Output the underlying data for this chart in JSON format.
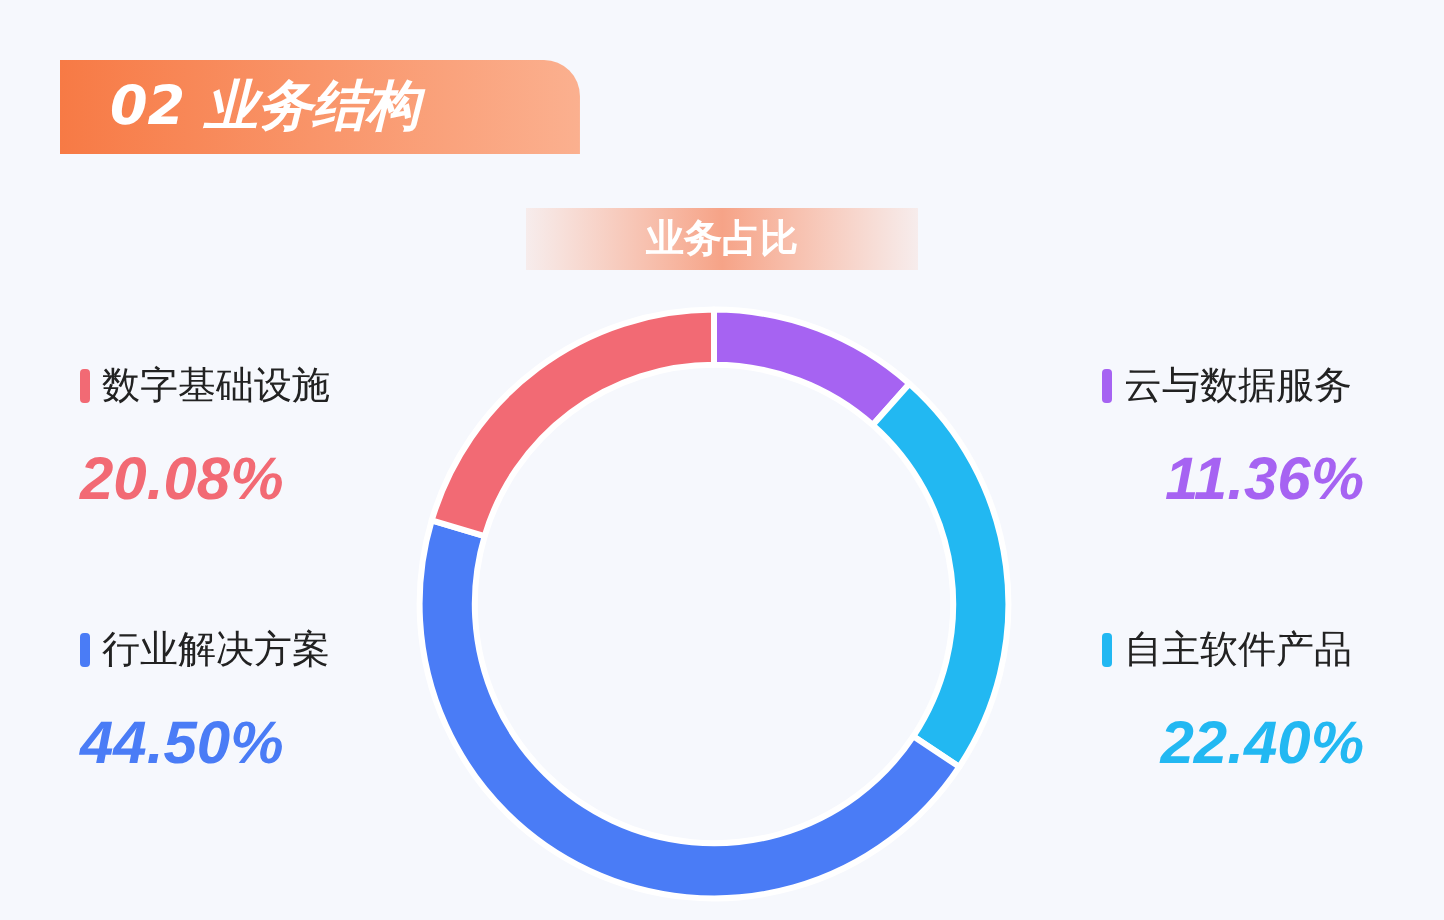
{
  "chart_data": {
    "type": "donut",
    "title": "02 业务结构",
    "subtitle": "业务占比",
    "categories": [
      "云与数据服务",
      "自主软件产品",
      "行业解决方案",
      "数字基础设施"
    ],
    "values": [
      11.36,
      22.4,
      44.5,
      20.08
    ],
    "value_labels": [
      "11.36%",
      "22.40%",
      "44.50%",
      "20.08%"
    ],
    "colors": [
      "#a663f2",
      "#22b8f2",
      "#4a7cf6",
      "#f26a74"
    ],
    "legend": "left"
  }
}
